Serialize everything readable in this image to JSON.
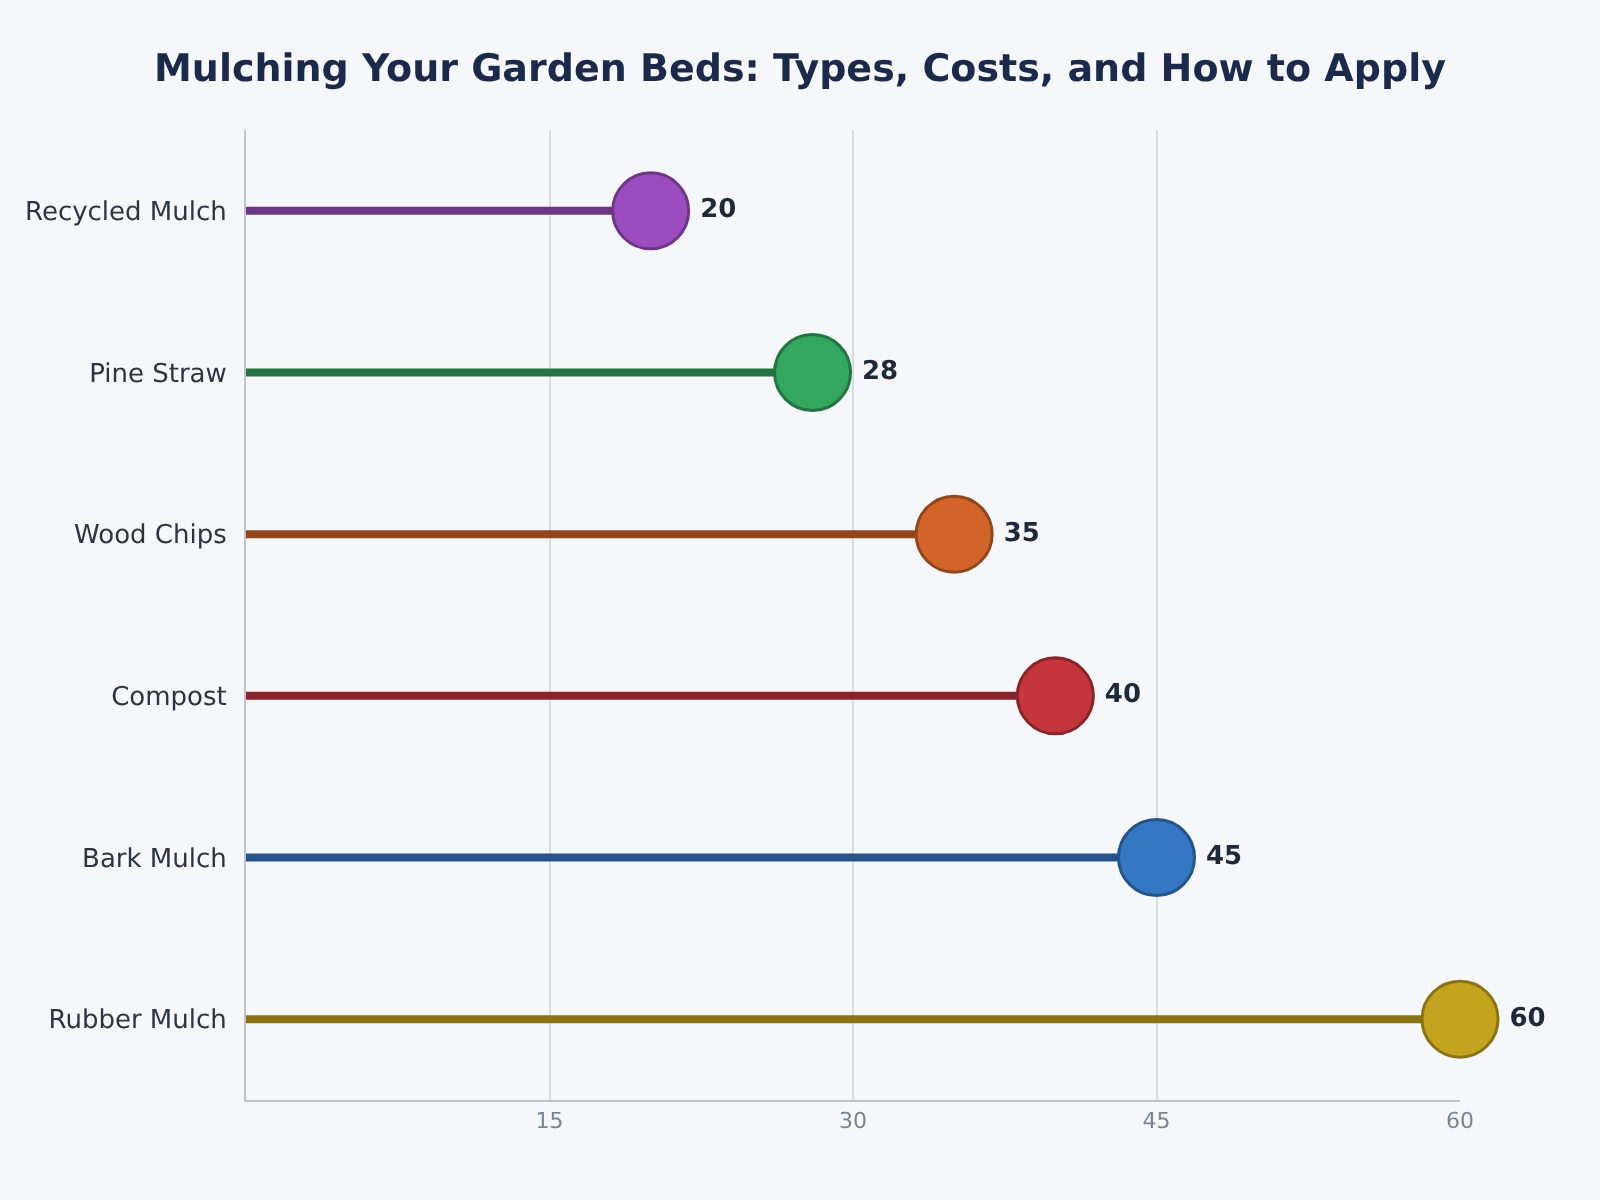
{
  "chart_data": {
    "type": "lollipop",
    "orientation": "horizontal",
    "title": "Mulching Your Garden Beds: Types, Costs, and How to Apply",
    "categories": [
      "Recycled Mulch",
      "Pine Straw",
      "Wood Chips",
      "Compost",
      "Bark Mulch",
      "Rubber Mulch"
    ],
    "values": [
      20,
      28,
      35,
      40,
      45,
      60
    ],
    "colors": [
      "#9b4dbf",
      "#33a660",
      "#d2642a",
      "#c4353c",
      "#3478c4",
      "#c4a41f"
    ],
    "xlim": [
      0,
      60
    ],
    "xticks": [
      15,
      30,
      45,
      60
    ],
    "grid": "x",
    "data_labels": true,
    "marker": "circle"
  }
}
